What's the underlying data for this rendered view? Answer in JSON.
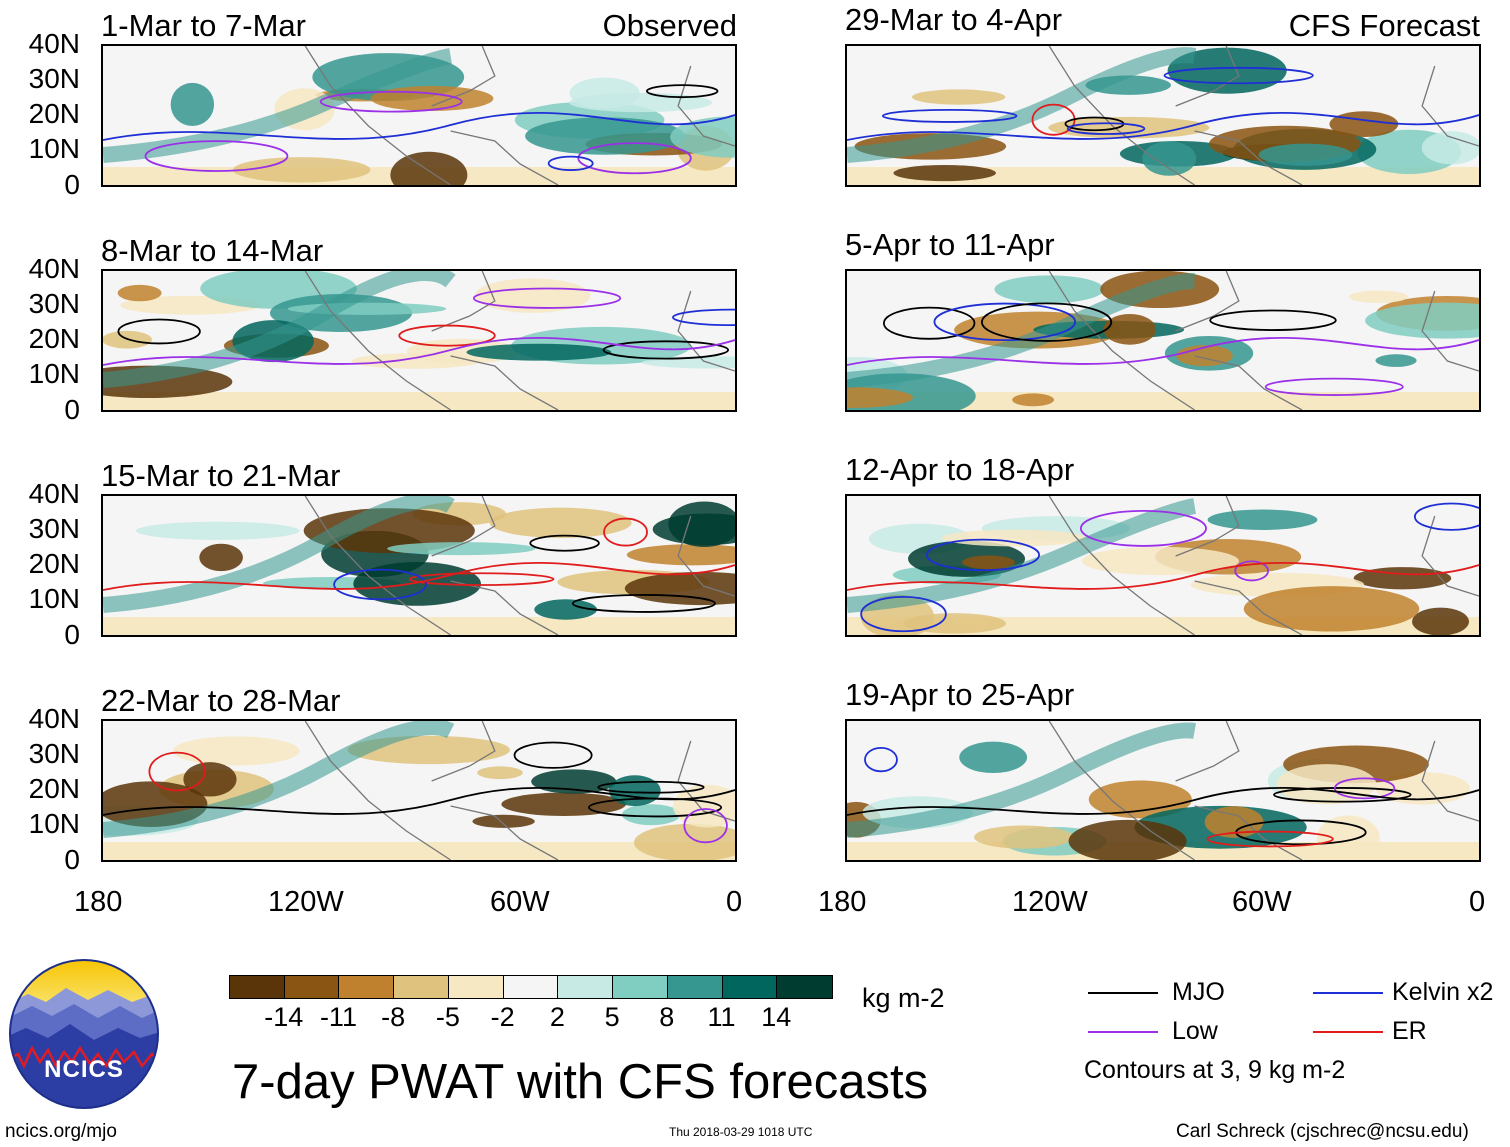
{
  "figure_title": "7-day PWAT with CFS forecasts",
  "labels": {
    "observed": "Observed",
    "forecast": "CFS Forecast"
  },
  "panels": [
    {
      "title": "1-Mar to 7-Mar",
      "group": "observed"
    },
    {
      "title": "8-Mar to 14-Mar",
      "group": "observed"
    },
    {
      "title": "15-Mar to 21-Mar",
      "group": "observed"
    },
    {
      "title": "22-Mar to 28-Mar",
      "group": "observed"
    },
    {
      "title": "29-Mar to 4-Apr",
      "group": "forecast"
    },
    {
      "title": "5-Apr to 11-Apr",
      "group": "forecast"
    },
    {
      "title": "12-Apr to 18-Apr",
      "group": "forecast"
    },
    {
      "title": "19-Apr to 25-Apr",
      "group": "forecast"
    }
  ],
  "lat_ticks": [
    "40N",
    "30N",
    "20N",
    "10N",
    "0"
  ],
  "lon_ticks": [
    "180",
    "120W",
    "60W",
    "0"
  ],
  "colorbar": {
    "colors": [
      "#5a3509",
      "#8a5412",
      "#bf812d",
      "#dfc27d",
      "#f6e8c3",
      "#f5f5f5",
      "#c7eae5",
      "#80cdc1",
      "#35978f",
      "#01665e",
      "#003c30"
    ],
    "labels": [
      "-14",
      "-11",
      "-8",
      "-5",
      "-2",
      "2",
      "5",
      "8",
      "11",
      "14"
    ],
    "units": "kg m-2"
  },
  "legend": {
    "items": [
      {
        "name": "MJO",
        "color": "#000000"
      },
      {
        "name": "Kelvin x2",
        "color": "#1f2fd6"
      },
      {
        "name": "Low",
        "color": "#9b30e8"
      },
      {
        "name": "ER",
        "color": "#e01c1c"
      }
    ],
    "note": "Contours at 3, 9 kg m-2"
  },
  "logo": {
    "text": "NCICS"
  },
  "footer": {
    "left": "ncics.org/mjo",
    "center": "Thu 2018-03-29 1018 UTC",
    "right": "Carl Schreck (cjschrec@ncsu.edu)"
  }
}
